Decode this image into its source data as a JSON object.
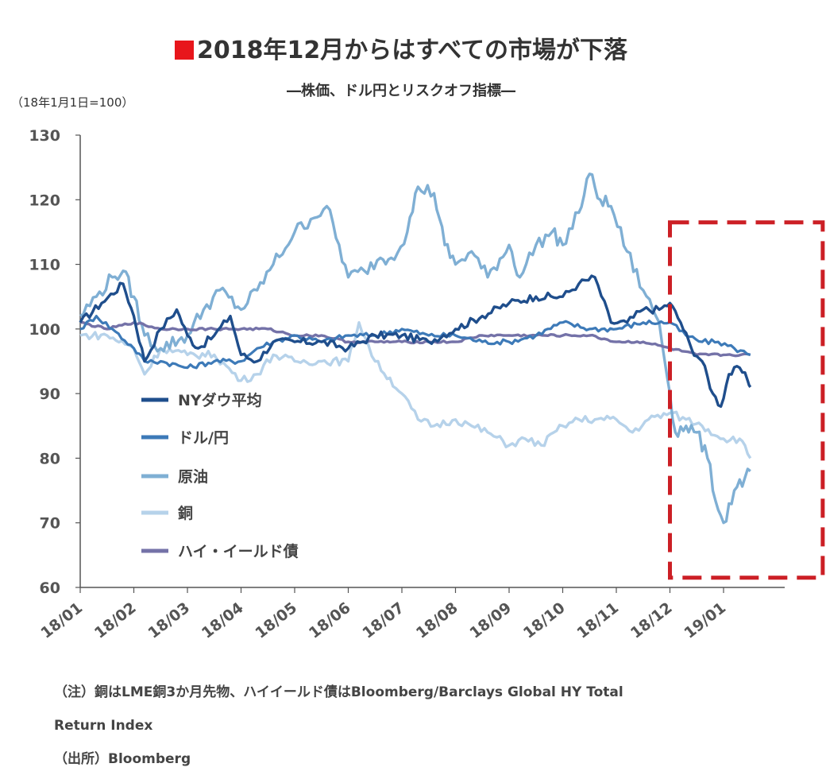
{
  "title": "2018年12月からはすべての市場が下落",
  "subtitle": "―株価、ドル円とリスクオフ指標―",
  "unit": "（18年1月1日=100）",
  "note_line1": "（注）銅はLME銅3か月先物、ハイイールド債はBloomberg/Barclays Global HY Total",
  "note_line2": "Return Index",
  "source": "（出所）Bloomberg",
  "colors": {
    "title_mark": "#e8161b",
    "highlight_box": "#cc1f25"
  },
  "chart_data": {
    "type": "line",
    "ylim": [
      60,
      130
    ],
    "yticks": [
      60,
      70,
      80,
      90,
      100,
      110,
      120,
      130
    ],
    "xlim": [
      0,
      13
    ],
    "x_tick_labels": [
      "18/01",
      "18/02",
      "18/03",
      "18/04",
      "18/05",
      "18/06",
      "18/07",
      "18/08",
      "18/09",
      "18/10",
      "18/11",
      "18/12",
      "19/01"
    ],
    "legend_position": "left, inside plot",
    "highlight": {
      "x_from": 11.0,
      "x_to": 13.85,
      "y_from": 61.5,
      "y_to": 116.5
    },
    "series": [
      {
        "name": "NYダウ平均",
        "color": "#1f4e8c",
        "points": [
          [
            0,
            101
          ],
          [
            0.4,
            104
          ],
          [
            0.8,
            107
          ],
          [
            1.0,
            102
          ],
          [
            1.2,
            95
          ],
          [
            1.5,
            100
          ],
          [
            1.8,
            103
          ],
          [
            2.0,
            99
          ],
          [
            2.2,
            97
          ],
          [
            2.5,
            99
          ],
          [
            2.8,
            102
          ],
          [
            3.0,
            96
          ],
          [
            3.3,
            95
          ],
          [
            3.6,
            98
          ],
          [
            4.0,
            98
          ],
          [
            4.5,
            98
          ],
          [
            5.0,
            97
          ],
          [
            5.5,
            99
          ],
          [
            6.0,
            99
          ],
          [
            6.5,
            98
          ],
          [
            7.0,
            100
          ],
          [
            7.5,
            102
          ],
          [
            8.0,
            104
          ],
          [
            8.5,
            105
          ],
          [
            9.0,
            105
          ],
          [
            9.3,
            107
          ],
          [
            9.6,
            108
          ],
          [
            9.9,
            101
          ],
          [
            10.2,
            101
          ],
          [
            10.5,
            103
          ],
          [
            10.8,
            103
          ],
          [
            11.0,
            104
          ],
          [
            11.2,
            101
          ],
          [
            11.4,
            97
          ],
          [
            11.6,
            95
          ],
          [
            11.8,
            90
          ],
          [
            11.95,
            88
          ],
          [
            12.1,
            93
          ],
          [
            12.3,
            94
          ],
          [
            12.45,
            92
          ],
          [
            12.5,
            91
          ]
        ]
      },
      {
        "name": "ドル/円",
        "color": "#3d7ab8",
        "points": [
          [
            0,
            100
          ],
          [
            0.3,
            102
          ],
          [
            0.6,
            100
          ],
          [
            1.0,
            97
          ],
          [
            1.2,
            95
          ],
          [
            1.5,
            95
          ],
          [
            2.0,
            94
          ],
          [
            2.5,
            95
          ],
          [
            3.0,
            95
          ],
          [
            3.3,
            97
          ],
          [
            3.6,
            98
          ],
          [
            4.0,
            99
          ],
          [
            4.5,
            98
          ],
          [
            5.0,
            99
          ],
          [
            5.5,
            99
          ],
          [
            6.0,
            100
          ],
          [
            6.5,
            99
          ],
          [
            7.0,
            99
          ],
          [
            7.5,
            98
          ],
          [
            8.0,
            98
          ],
          [
            8.5,
            99
          ],
          [
            9.0,
            101
          ],
          [
            9.5,
            100
          ],
          [
            10.0,
            100
          ],
          [
            10.5,
            101
          ],
          [
            11.0,
            101
          ],
          [
            11.3,
            99
          ],
          [
            11.6,
            98
          ],
          [
            11.9,
            98
          ],
          [
            12.2,
            97
          ],
          [
            12.5,
            96
          ]
        ]
      },
      {
        "name": "原油",
        "color": "#7fafd4",
        "points": [
          [
            0,
            102
          ],
          [
            0.3,
            105
          ],
          [
            0.6,
            108
          ],
          [
            0.8,
            109
          ],
          [
            1.0,
            105
          ],
          [
            1.2,
            99
          ],
          [
            1.5,
            97
          ],
          [
            2.0,
            99
          ],
          [
            2.3,
            103
          ],
          [
            2.6,
            106
          ],
          [
            3.0,
            103
          ],
          [
            3.3,
            106
          ],
          [
            3.6,
            110
          ],
          [
            4.0,
            115
          ],
          [
            4.3,
            117
          ],
          [
            4.6,
            119
          ],
          [
            5.0,
            108
          ],
          [
            5.3,
            109
          ],
          [
            5.6,
            111
          ],
          [
            5.8,
            111
          ],
          [
            6.1,
            115
          ],
          [
            6.3,
            122
          ],
          [
            6.6,
            121
          ],
          [
            6.8,
            113
          ],
          [
            7.0,
            110
          ],
          [
            7.3,
            112
          ],
          [
            7.6,
            108
          ],
          [
            8.0,
            113
          ],
          [
            8.2,
            108
          ],
          [
            8.5,
            113
          ],
          [
            8.8,
            115
          ],
          [
            9.0,
            113
          ],
          [
            9.3,
            118
          ],
          [
            9.5,
            124
          ],
          [
            9.7,
            120
          ],
          [
            9.9,
            119
          ],
          [
            10.2,
            112
          ],
          [
            10.5,
            106
          ],
          [
            10.8,
            101
          ],
          [
            11.0,
            90
          ],
          [
            11.1,
            84
          ],
          [
            11.3,
            85
          ],
          [
            11.5,
            84
          ],
          [
            11.7,
            80
          ],
          [
            11.9,
            72
          ],
          [
            12.0,
            70
          ],
          [
            12.2,
            75
          ],
          [
            12.4,
            77
          ],
          [
            12.5,
            78
          ]
        ]
      },
      {
        "name": "銅",
        "color": "#b6d2ea",
        "points": [
          [
            0,
            99
          ],
          [
            0.5,
            99
          ],
          [
            1.0,
            97
          ],
          [
            1.2,
            93
          ],
          [
            1.5,
            97
          ],
          [
            2.0,
            96
          ],
          [
            2.5,
            96
          ],
          [
            3.0,
            92
          ],
          [
            3.3,
            93
          ],
          [
            3.6,
            96
          ],
          [
            4.0,
            95
          ],
          [
            4.5,
            95
          ],
          [
            5.0,
            95
          ],
          [
            5.2,
            101
          ],
          [
            5.5,
            95
          ],
          [
            6.0,
            90
          ],
          [
            6.3,
            86
          ],
          [
            6.6,
            85
          ],
          [
            7.0,
            86
          ],
          [
            7.3,
            85
          ],
          [
            7.6,
            84
          ],
          [
            8.0,
            82
          ],
          [
            8.3,
            83
          ],
          [
            8.6,
            82
          ],
          [
            9.0,
            85
          ],
          [
            9.3,
            86
          ],
          [
            9.6,
            86
          ],
          [
            10.0,
            86
          ],
          [
            10.3,
            84
          ],
          [
            10.6,
            86
          ],
          [
            11.0,
            87
          ],
          [
            11.3,
            86
          ],
          [
            11.6,
            85
          ],
          [
            12.0,
            83
          ],
          [
            12.3,
            83
          ],
          [
            12.5,
            80
          ]
        ]
      },
      {
        "name": "ハイ・イールド債",
        "color": "#7472a8",
        "points": [
          [
            0,
            101
          ],
          [
            0.5,
            100
          ],
          [
            1.0,
            101
          ],
          [
            1.5,
            100
          ],
          [
            2.0,
            100
          ],
          [
            2.5,
            100
          ],
          [
            3.0,
            100
          ],
          [
            3.5,
            100
          ],
          [
            4.0,
            99
          ],
          [
            4.5,
            99
          ],
          [
            5.0,
            98
          ],
          [
            5.5,
            98
          ],
          [
            6.0,
            98
          ],
          [
            6.5,
            98
          ],
          [
            7.0,
            98
          ],
          [
            7.5,
            99
          ],
          [
            8.0,
            99
          ],
          [
            8.5,
            99
          ],
          [
            9.0,
            99
          ],
          [
            9.5,
            99
          ],
          [
            10.0,
            98
          ],
          [
            10.5,
            98
          ],
          [
            11.0,
            97
          ],
          [
            11.5,
            96
          ],
          [
            12.0,
            96
          ],
          [
            12.5,
            96
          ]
        ]
      }
    ]
  }
}
